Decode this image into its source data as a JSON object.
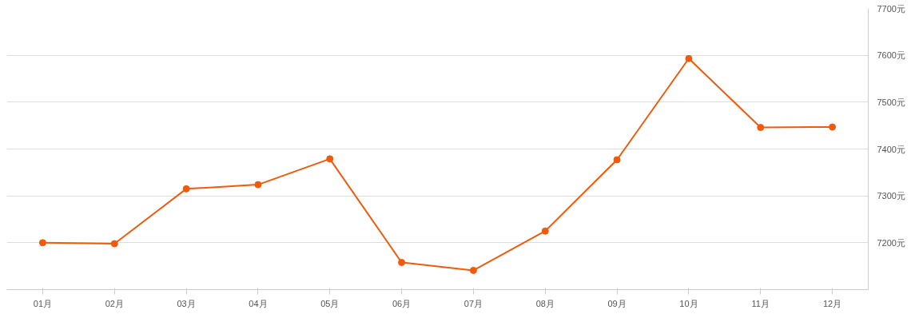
{
  "chart_data": {
    "type": "line",
    "categories": [
      "01月",
      "02月",
      "03月",
      "04月",
      "05月",
      "06月",
      "07月",
      "08月",
      "09月",
      "10月",
      "11月",
      "12月"
    ],
    "series": [
      {
        "color": "#f15a0a",
        "values": [
          7200,
          7198,
          7315,
          7324,
          7379,
          7158,
          7141,
          7225,
          7377,
          7593,
          7446,
          7447
        ]
      }
    ],
    "ylim": [
      7100,
      7700
    ],
    "yticks": [
      {
        "value": 7200,
        "label": "7200元"
      },
      {
        "value": 7300,
        "label": "7300元"
      },
      {
        "value": 7400,
        "label": "7400元"
      },
      {
        "value": 7500,
        "label": "7500元"
      },
      {
        "value": 7600,
        "label": "7600元"
      },
      {
        "value": 7700,
        "label": "7700元"
      }
    ],
    "grid": "y",
    "marker": "circle",
    "line_style": "solid"
  }
}
